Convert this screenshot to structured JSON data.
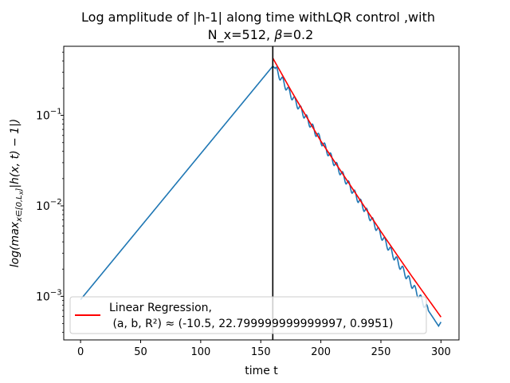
{
  "chart_data": {
    "type": "line",
    "title_line1": "Log amplitude of |h-1| along time withLQR control ,with",
    "title_line2_prefix": "N_x=512, ",
    "title_beta_symbol": "β",
    "title_line2_suffix": "=0.2",
    "xlabel": "time t",
    "ylabel": "log(max_{x∈[0,L_x]}|h(x,t)−1|)",
    "ylabel_parts": {
      "pre": "log(max",
      "sub": "x∈[0,L",
      "subsub": "x",
      "subclose": "]",
      "post": "|h(x, t) − 1|)"
    },
    "x_ticks": [
      0,
      50,
      100,
      150,
      200,
      250,
      300
    ],
    "y_ticks": [
      {
        "value": 0.001,
        "mantissa": "10",
        "exponent": "−3"
      },
      {
        "value": 0.01,
        "mantissa": "10",
        "exponent": "−2"
      },
      {
        "value": 0.1,
        "mantissa": "10",
        "exponent": "−1"
      }
    ],
    "xlim": [
      -14,
      315
    ],
    "ylim": [
      0.00033,
      0.58
    ],
    "y_scale": "log",
    "vertical_line_x": 160,
    "series": [
      {
        "color": "#1f77b4",
        "x": [
          0,
          160,
          162,
          175,
          190,
          200,
          210,
          220,
          230,
          240,
          250,
          260,
          270,
          280,
          290,
          298,
          300
        ],
        "y": [
          0.00092,
          0.35,
          0.33,
          0.17,
          0.085,
          0.053,
          0.032,
          0.02,
          0.0125,
          0.0079,
          0.0048,
          0.0029,
          0.0018,
          0.0011,
          0.00068,
          0.00047,
          0.00052
        ],
        "oscillation_start_x": 162,
        "oscillation_period": 5,
        "oscillation_relative_amplitude": 0.09
      },
      {
        "name": "Linear Regression,",
        "color": "#ff0000",
        "x": [
          160,
          175,
          200,
          225,
          250,
          275,
          300
        ],
        "y": [
          0.43,
          0.19,
          0.052,
          0.0165,
          0.0052,
          0.00172,
          0.00059
        ]
      }
    ],
    "legend": {
      "placement": "lower-left",
      "entries": [
        {
          "line1": "Linear Regression,",
          "line2": " (a, b, R²) ≈ (-10.5, 22.799999999999997, 0.9951)",
          "color": "#ff0000"
        }
      ]
    }
  }
}
